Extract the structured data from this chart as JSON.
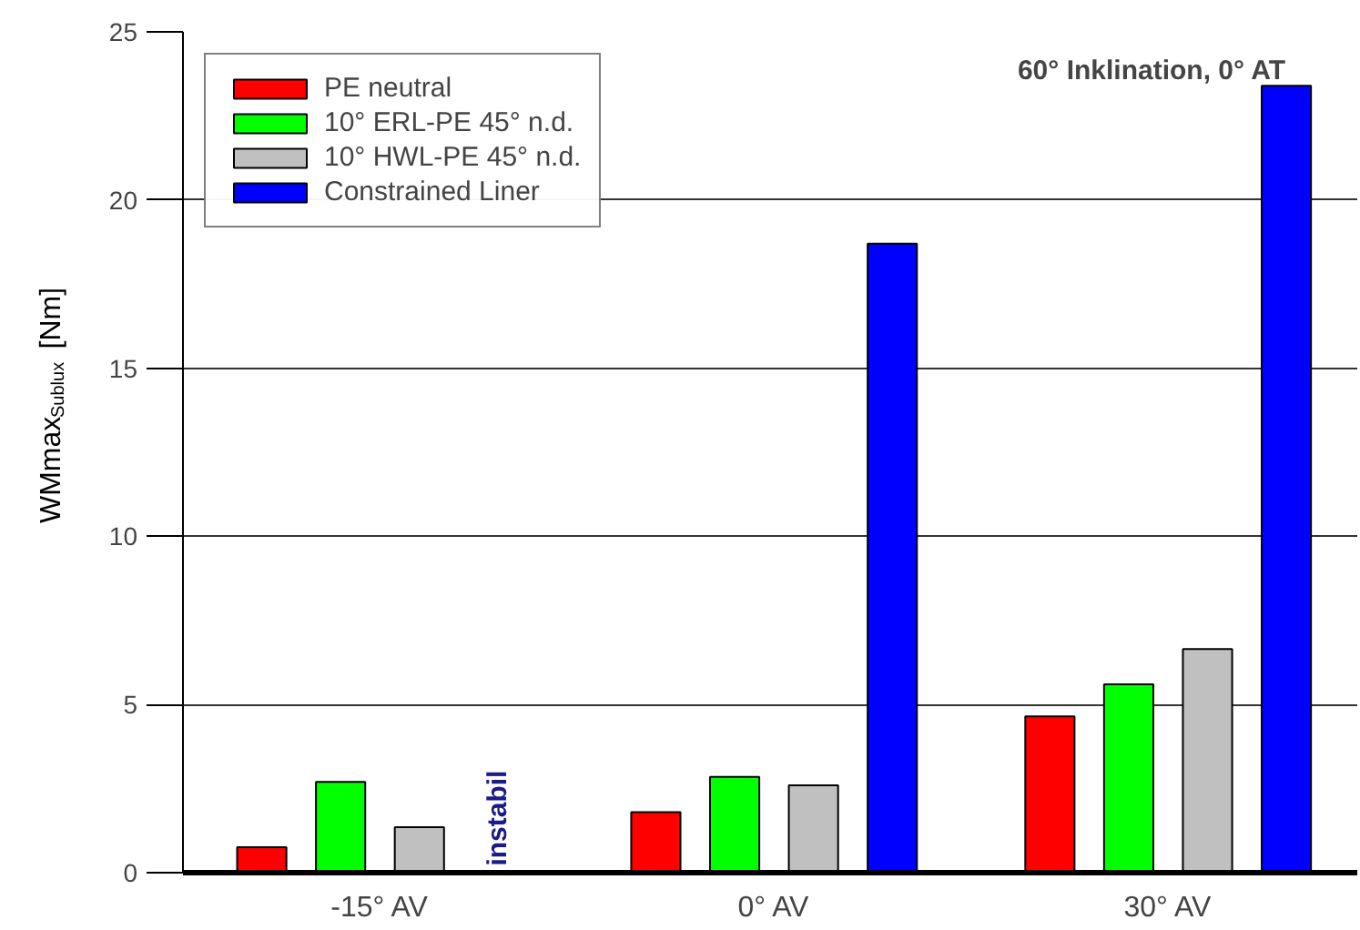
{
  "chart_data": {
    "type": "bar",
    "title": "60° Inklination, 0° AT",
    "ylabel": "WMmax$_{Sublux}$ [Nm]",
    "categories": [
      "-15° AV",
      "0° AV",
      "30° AV"
    ],
    "series": [
      {
        "name": "PE neutral",
        "color": "#ff0000",
        "values": [
          0.76,
          1.8,
          4.65
        ]
      },
      {
        "name": "10° ERL-PE 45° n.d.",
        "color": "#00ff00",
        "values": [
          2.7,
          2.85,
          5.6
        ]
      },
      {
        "name": "10° HWL-PE 45° n.d.",
        "color": "#c0c0c0",
        "values": [
          1.35,
          2.6,
          6.65
        ]
      },
      {
        "name": "Constrained Liner",
        "color": "#0000ff",
        "values": [
          null,
          18.7,
          23.4
        ]
      }
    ],
    "annotations": [
      "instabil"
    ],
    "ylim": [
      0,
      25
    ],
    "yticks": [
      0,
      5,
      10,
      15,
      20,
      25
    ],
    "grid": "y",
    "legend": "top left"
  }
}
